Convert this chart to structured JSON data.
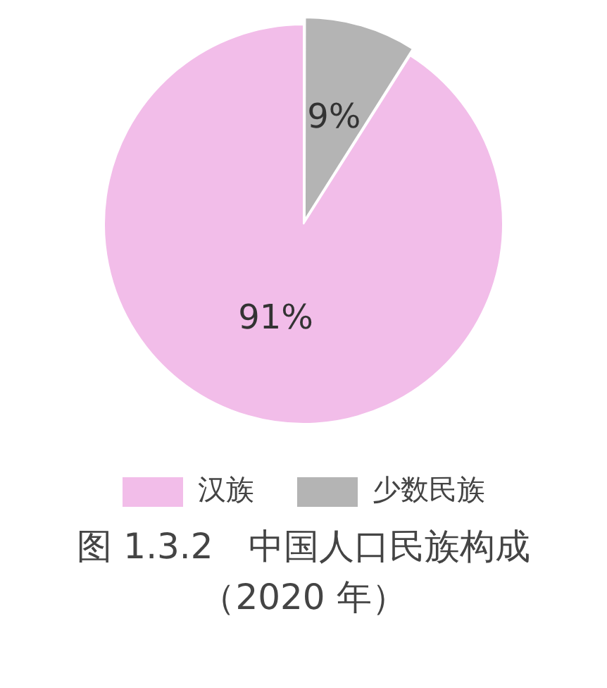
{
  "chart_data": {
    "type": "pie",
    "title": "图 1.3.2　中国人口民族构成（2020 年）",
    "categories": [
      "汉族",
      "少数民族"
    ],
    "values": [
      91,
      9
    ],
    "colors": [
      "#f2bde9",
      "#b4b4b4"
    ],
    "value_labels": [
      "91%",
      "9%"
    ],
    "legend": "bottom"
  }
}
